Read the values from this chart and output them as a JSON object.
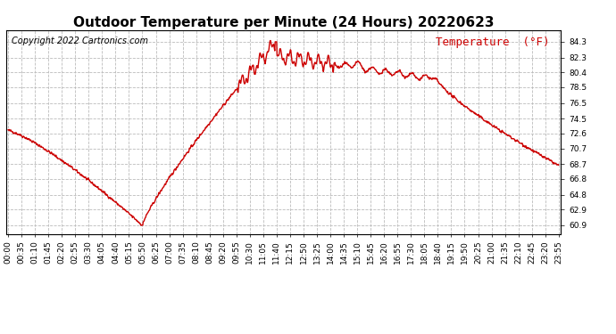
{
  "title": "Outdoor Temperature per Minute (24 Hours) 20220623",
  "copyright_text": "Copyright 2022 Cartronics.com",
  "legend_text": "Temperature  (°F)",
  "line_color": "#cc0000",
  "legend_color": "#cc0000",
  "copyright_color": "#000000",
  "background_color": "#ffffff",
  "grid_color": "#bbbbbb",
  "yticks": [
    60.9,
    62.9,
    64.8,
    66.8,
    68.7,
    70.7,
    72.6,
    74.5,
    76.5,
    78.5,
    80.4,
    82.3,
    84.3
  ],
  "ylim": [
    59.8,
    85.8
  ],
  "xtick_labels": [
    "00:00",
    "00:35",
    "01:10",
    "01:45",
    "02:20",
    "02:55",
    "03:30",
    "04:05",
    "04:40",
    "05:15",
    "05:50",
    "06:25",
    "07:00",
    "07:35",
    "08:10",
    "08:45",
    "09:20",
    "09:55",
    "10:30",
    "11:05",
    "11:40",
    "12:15",
    "12:50",
    "13:25",
    "14:00",
    "14:35",
    "15:10",
    "15:45",
    "16:20",
    "16:55",
    "17:30",
    "18:05",
    "18:40",
    "19:15",
    "19:50",
    "20:25",
    "21:00",
    "21:35",
    "22:10",
    "22:45",
    "23:20",
    "23:55"
  ],
  "title_fontsize": 11,
  "axis_fontsize": 6.5,
  "legend_fontsize": 9,
  "copyright_fontsize": 7,
  "line_width": 1.0
}
